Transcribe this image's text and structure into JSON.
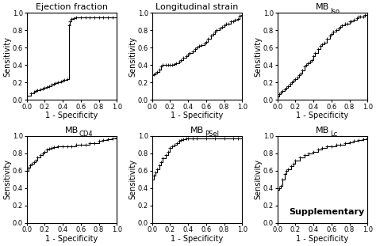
{
  "chart_data": [
    {
      "type": "line",
      "title": "Ejection fraction",
      "xlabel": "1 - Specificity",
      "ylabel": "Sensitivity",
      "x": [
        0.0,
        0.05,
        0.08,
        0.1,
        0.12,
        0.15,
        0.18,
        0.2,
        0.22,
        0.25,
        0.28,
        0.3,
        0.32,
        0.35,
        0.38,
        0.4,
        0.42,
        0.45,
        0.47,
        0.48,
        0.5,
        0.52,
        0.55,
        0.6,
        0.65,
        0.7,
        0.75,
        0.8,
        0.85,
        0.9,
        0.95,
        1.0
      ],
      "values": [
        0.05,
        0.07,
        0.09,
        0.1,
        0.11,
        0.12,
        0.13,
        0.14,
        0.15,
        0.16,
        0.17,
        0.18,
        0.19,
        0.2,
        0.21,
        0.22,
        0.23,
        0.24,
        0.86,
        0.9,
        0.93,
        0.94,
        0.95,
        0.95,
        0.95,
        0.95,
        0.95,
        0.95,
        0.95,
        0.95,
        0.95,
        0.95
      ],
      "color": "#000000",
      "marker": "+",
      "line_style": "steps",
      "xlim": [
        0.0,
        1.0
      ],
      "ylim": [
        0.0,
        1.0
      ],
      "xticks": [
        0.0,
        0.2,
        0.4,
        0.6,
        0.8,
        1.0
      ],
      "yticks": [
        0.0,
        0.2,
        0.4,
        0.6,
        0.8,
        1.0
      ]
    },
    {
      "type": "line",
      "title": "Longitudinal strain",
      "xlabel": "1 - Specificity",
      "ylabel": "Sensitivity",
      "x": [
        0.0,
        0.02,
        0.04,
        0.06,
        0.08,
        0.1,
        0.12,
        0.15,
        0.18,
        0.2,
        0.22,
        0.25,
        0.27,
        0.3,
        0.32,
        0.35,
        0.38,
        0.4,
        0.42,
        0.45,
        0.48,
        0.5,
        0.52,
        0.55,
        0.58,
        0.6,
        0.62,
        0.65,
        0.68,
        0.7,
        0.72,
        0.75,
        0.78,
        0.8,
        0.82,
        0.85,
        0.87,
        0.9,
        0.92,
        0.95,
        0.97,
        1.0
      ],
      "values": [
        0.28,
        0.29,
        0.3,
        0.32,
        0.35,
        0.38,
        0.4,
        0.4,
        0.4,
        0.4,
        0.4,
        0.41,
        0.42,
        0.44,
        0.46,
        0.48,
        0.5,
        0.52,
        0.54,
        0.56,
        0.58,
        0.6,
        0.62,
        0.63,
        0.65,
        0.67,
        0.7,
        0.74,
        0.76,
        0.78,
        0.8,
        0.82,
        0.84,
        0.86,
        0.88,
        0.88,
        0.9,
        0.9,
        0.92,
        0.93,
        0.97,
        0.98
      ],
      "color": "#000000",
      "marker": "+",
      "line_style": "steps",
      "xlim": [
        0.0,
        1.0
      ],
      "ylim": [
        0.0,
        1.0
      ],
      "xticks": [
        0.0,
        0.2,
        0.4,
        0.6,
        0.8,
        1.0
      ],
      "yticks": [
        0.0,
        0.2,
        0.4,
        0.6,
        0.8,
        1.0
      ]
    },
    {
      "type": "line",
      "title": "MB",
      "subtitle": "Iso",
      "xlabel": "1 - Specificity",
      "ylabel": "Sensitivity",
      "x": [
        0.0,
        0.02,
        0.04,
        0.06,
        0.08,
        0.1,
        0.12,
        0.14,
        0.16,
        0.18,
        0.2,
        0.22,
        0.24,
        0.26,
        0.28,
        0.3,
        0.32,
        0.34,
        0.36,
        0.38,
        0.4,
        0.42,
        0.45,
        0.48,
        0.5,
        0.52,
        0.55,
        0.58,
        0.6,
        0.62,
        0.65,
        0.68,
        0.7,
        0.72,
        0.75,
        0.78,
        0.8,
        0.82,
        0.85,
        0.88,
        0.9,
        0.92,
        0.95,
        0.97,
        1.0
      ],
      "values": [
        0.04,
        0.06,
        0.08,
        0.1,
        0.12,
        0.14,
        0.16,
        0.18,
        0.2,
        0.22,
        0.24,
        0.26,
        0.28,
        0.3,
        0.34,
        0.38,
        0.4,
        0.42,
        0.44,
        0.46,
        0.5,
        0.54,
        0.58,
        0.62,
        0.64,
        0.66,
        0.7,
        0.74,
        0.76,
        0.78,
        0.8,
        0.82,
        0.84,
        0.86,
        0.88,
        0.88,
        0.9,
        0.9,
        0.92,
        0.94,
        0.96,
        0.96,
        0.96,
        0.98,
        0.98
      ],
      "color": "#000000",
      "marker": "+",
      "line_style": "steps",
      "xlim": [
        0.0,
        1.0
      ],
      "ylim": [
        0.0,
        1.0
      ],
      "xticks": [
        0.0,
        0.2,
        0.4,
        0.6,
        0.8,
        1.0
      ],
      "yticks": [
        0.0,
        0.2,
        0.4,
        0.6,
        0.8,
        1.0
      ]
    },
    {
      "type": "line",
      "title": "MB",
      "subtitle": "CD4",
      "xlabel": "1 - Specificity",
      "ylabel": "Sensitivity",
      "x": [
        0.0,
        0.02,
        0.04,
        0.06,
        0.08,
        0.1,
        0.12,
        0.15,
        0.18,
        0.2,
        0.22,
        0.25,
        0.28,
        0.3,
        0.35,
        0.4,
        0.45,
        0.5,
        0.55,
        0.6,
        0.65,
        0.7,
        0.75,
        0.8,
        0.85,
        0.9,
        0.95,
        1.0
      ],
      "values": [
        0.6,
        0.63,
        0.66,
        0.68,
        0.7,
        0.72,
        0.75,
        0.78,
        0.8,
        0.82,
        0.84,
        0.85,
        0.86,
        0.87,
        0.88,
        0.88,
        0.88,
        0.88,
        0.9,
        0.9,
        0.9,
        0.92,
        0.92,
        0.94,
        0.95,
        0.96,
        0.97,
        0.98
      ],
      "color": "#000000",
      "marker": "+",
      "line_style": "steps",
      "xlim": [
        0.0,
        1.0
      ],
      "ylim": [
        0.0,
        1.0
      ],
      "xticks": [
        0.0,
        0.2,
        0.4,
        0.6,
        0.8,
        1.0
      ],
      "yticks": [
        0.0,
        0.2,
        0.4,
        0.6,
        0.8,
        1.0
      ]
    },
    {
      "type": "line",
      "title": "MB",
      "subtitle": "PSel",
      "xlabel": "1 - Specificity",
      "ylabel": "Sensitivity",
      "x": [
        0.0,
        0.02,
        0.04,
        0.06,
        0.08,
        0.1,
        0.12,
        0.15,
        0.18,
        0.2,
        0.22,
        0.25,
        0.28,
        0.3,
        0.32,
        0.35,
        0.38,
        0.4,
        0.45,
        0.5,
        0.6,
        0.7,
        0.8,
        0.9,
        0.95,
        1.0
      ],
      "values": [
        0.5,
        0.54,
        0.58,
        0.62,
        0.66,
        0.7,
        0.74,
        0.78,
        0.82,
        0.86,
        0.88,
        0.9,
        0.92,
        0.94,
        0.95,
        0.96,
        0.97,
        0.97,
        0.97,
        0.97,
        0.97,
        0.97,
        0.97,
        0.97,
        0.97,
        0.97
      ],
      "color": "#000000",
      "marker": "+",
      "line_style": "steps",
      "xlim": [
        0.0,
        1.0
      ],
      "ylim": [
        0.0,
        1.0
      ],
      "xticks": [
        0.0,
        0.2,
        0.4,
        0.6,
        0.8,
        1.0
      ],
      "yticks": [
        0.0,
        0.2,
        0.4,
        0.6,
        0.8,
        1.0
      ]
    },
    {
      "type": "line",
      "title": "MB",
      "subtitle": "Lc",
      "xlabel": "1 - Specificity",
      "ylabel": "Sensitivity",
      "x": [
        0.0,
        0.02,
        0.04,
        0.06,
        0.08,
        0.1,
        0.12,
        0.15,
        0.18,
        0.2,
        0.25,
        0.3,
        0.35,
        0.4,
        0.45,
        0.5,
        0.55,
        0.6,
        0.65,
        0.7,
        0.75,
        0.8,
        0.85,
        0.9,
        0.95,
        1.0
      ],
      "values": [
        0.38,
        0.4,
        0.42,
        0.5,
        0.56,
        0.6,
        0.62,
        0.65,
        0.68,
        0.72,
        0.75,
        0.78,
        0.8,
        0.82,
        0.84,
        0.86,
        0.88,
        0.88,
        0.9,
        0.9,
        0.92,
        0.93,
        0.94,
        0.95,
        0.96,
        0.97
      ],
      "color": "#000000",
      "marker": "+",
      "line_style": "steps",
      "xlim": [
        0.0,
        1.0
      ],
      "ylim": [
        0.0,
        1.0
      ],
      "xticks": [
        0.0,
        0.2,
        0.4,
        0.6,
        0.8,
        1.0
      ],
      "yticks": [
        0.0,
        0.2,
        0.4,
        0.6,
        0.8,
        1.0
      ],
      "annotations": [
        {
          "text": "Supplementary"
        }
      ]
    }
  ]
}
